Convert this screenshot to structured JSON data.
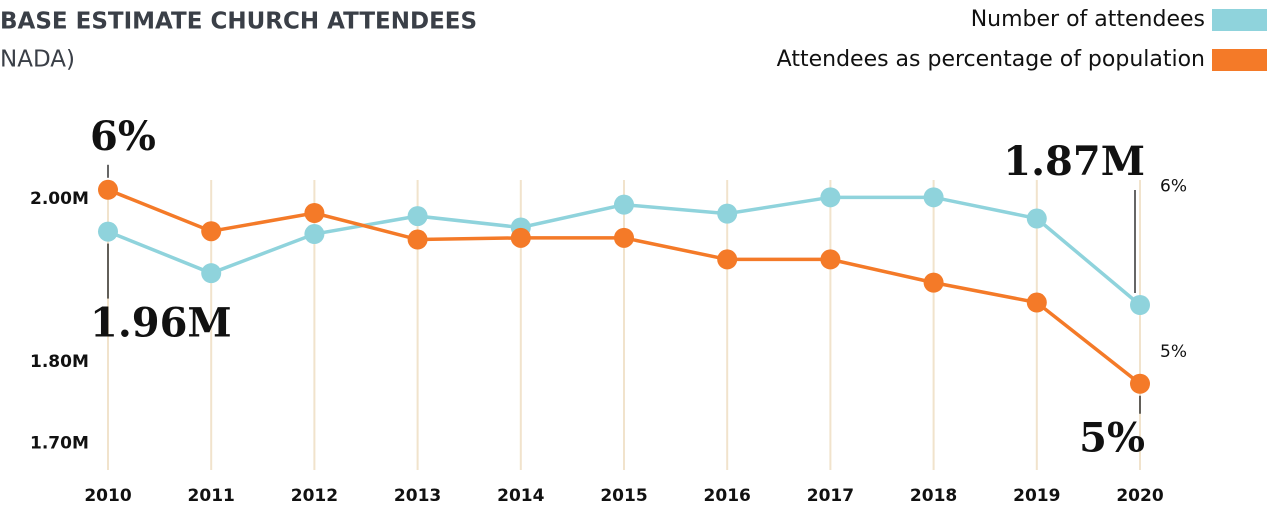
{
  "chart_data": {
    "type": "line",
    "title": "BASE ESTIMATE CHURCH ATTENDEES",
    "subtitle": "NADA)",
    "categories": [
      "2010",
      "2011",
      "2012",
      "2013",
      "2014",
      "2015",
      "2016",
      "2017",
      "2018",
      "2019",
      "2020"
    ],
    "series": [
      {
        "name": "Number of attendees",
        "color": "#8fd3dc",
        "values": [
          1960000,
          1909000,
          1957000,
          1979000,
          1965000,
          1993000,
          1982000,
          2002000,
          2002000,
          1976000,
          1870000
        ],
        "value_labels": [
          "1.96M",
          null,
          null,
          null,
          null,
          null,
          null,
          null,
          null,
          null,
          "1.87M"
        ]
      },
      {
        "name": "Attendees as percentage of population",
        "color": "#f47a28",
        "axis": "y2",
        "values": [
          5.98,
          5.73,
          5.84,
          5.68,
          5.69,
          5.69,
          5.56,
          5.56,
          5.42,
          5.3,
          4.81
        ],
        "value_labels": [
          "6%",
          null,
          null,
          null,
          null,
          null,
          null,
          null,
          null,
          null,
          "5%"
        ]
      }
    ],
    "ylim": [
      1680000,
      2060000
    ],
    "yticks": [
      {
        "value": 2000000,
        "label": "2.00M"
      },
      {
        "value": 1800000,
        "label": "1.80M"
      },
      {
        "value": 1700000,
        "label": "1.70M"
      }
    ],
    "y2lim": [
      4.35,
      6.22
    ],
    "y2ticks": [
      {
        "value": 6,
        "label": "6%"
      },
      {
        "value": 5,
        "label": "5%"
      }
    ],
    "grid": true,
    "legend": "top-right"
  }
}
